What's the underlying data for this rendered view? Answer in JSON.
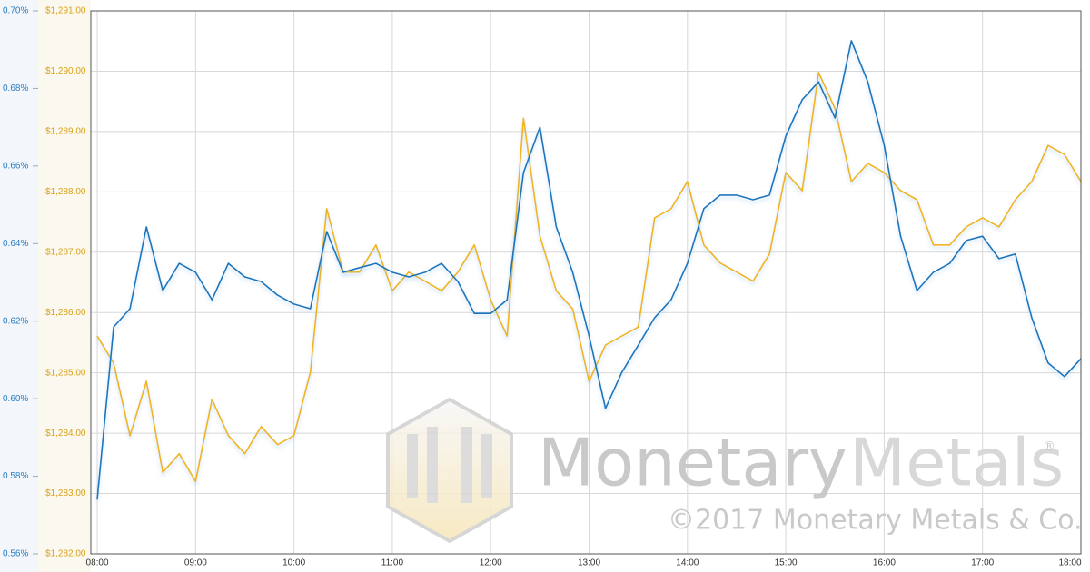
{
  "chart_data": {
    "type": "line",
    "x": [
      8,
      8.1667,
      8.3333,
      8.5,
      8.6667,
      8.8333,
      9,
      9.1667,
      9.3333,
      9.5,
      9.6667,
      9.8333,
      10,
      10.1667,
      10.3333,
      10.5,
      10.6667,
      10.8333,
      11,
      11.1667,
      11.3333,
      11.5,
      11.6667,
      11.8333,
      12,
      12.1667,
      12.3333,
      12.5,
      12.6667,
      12.8333,
      13,
      13.1667,
      13.3333,
      13.5,
      13.6667,
      13.8333,
      14,
      14.1667,
      14.3333,
      14.5,
      14.6667,
      14.8333,
      15,
      15.1667,
      15.3333,
      15.5,
      15.6667,
      15.8333,
      16,
      16.1667,
      16.3333,
      16.5,
      16.6667,
      16.8333,
      17,
      17.1667,
      17.3333,
      17.5,
      17.6667,
      17.8333,
      18
    ],
    "series": [
      {
        "color": "#f0b41c",
        "values": [
          1285.61,
          1285.16,
          1283.96,
          1284.86,
          1283.35,
          1283.66,
          1283.2,
          1284.56,
          1283.96,
          1283.66,
          1284.11,
          1283.81,
          1283.96,
          1285.01,
          1287.72,
          1286.67,
          1286.67,
          1287.12,
          1286.36,
          1286.67,
          1286.52,
          1286.36,
          1286.67,
          1287.12,
          1286.21,
          1285.61,
          1289.22,
          1287.27,
          1286.36,
          1286.06,
          1284.86,
          1285.46,
          1285.61,
          1285.76,
          1287.57,
          1287.72,
          1288.17,
          1287.12,
          1286.82,
          1286.67,
          1286.52,
          1286.97,
          1288.32,
          1288.02,
          1289.98,
          1289.38,
          1288.17,
          1288.47,
          1288.32,
          1288.02,
          1287.87,
          1287.12,
          1287.12,
          1287.42,
          1287.57,
          1287.42,
          1287.87,
          1288.17,
          1288.77,
          1288.62,
          1288.17
        ]
      },
      {
        "color": "#1a75bb",
        "axis": "y2",
        "values": [
          0.574,
          0.6185,
          0.6232,
          0.6443,
          0.6279,
          0.6349,
          0.6326,
          0.6255,
          0.6349,
          0.6314,
          0.6302,
          0.6267,
          0.6244,
          0.6232,
          0.6431,
          0.6326,
          0.6338,
          0.6349,
          0.6326,
          0.6314,
          0.6326,
          0.6349,
          0.6302,
          0.622,
          0.622,
          0.6255,
          0.6583,
          0.67,
          0.6443,
          0.6326,
          0.6162,
          0.5975,
          0.6068,
          0.6138,
          0.6209,
          0.6255,
          0.6349,
          0.649,
          0.6525,
          0.6525,
          0.6513,
          0.6525,
          0.6677,
          0.6771,
          0.6817,
          0.6724,
          0.6923,
          0.6817,
          0.6654,
          0.6419,
          0.6279,
          0.6326,
          0.6349,
          0.6408,
          0.6419,
          0.6361,
          0.6373,
          0.6209,
          0.6092,
          0.6057,
          0.6103
        ]
      }
    ],
    "xlim": [
      7.935,
      18
    ],
    "xticks": [
      {
        "value": 8,
        "label": "08:00"
      },
      {
        "value": 9,
        "label": "09:00"
      },
      {
        "value": 10,
        "label": "10:00"
      },
      {
        "value": 11,
        "label": "11:00"
      },
      {
        "value": 12,
        "label": "12:00"
      },
      {
        "value": 13,
        "label": "13:00"
      },
      {
        "value": 14,
        "label": "14:00"
      },
      {
        "value": 15,
        "label": "15:00"
      },
      {
        "value": 16,
        "label": "16:00"
      },
      {
        "value": 17,
        "label": "17:00"
      },
      {
        "value": 18,
        "label": "18:00"
      }
    ],
    "ylim": [
      1282,
      1291
    ],
    "yticks": [
      {
        "value": 1282,
        "label": "$1,282.00"
      },
      {
        "value": 1283,
        "label": "$1,283.00"
      },
      {
        "value": 1284,
        "label": "$1,284.00"
      },
      {
        "value": 1285,
        "label": "$1,285.00"
      },
      {
        "value": 1286,
        "label": "$1,286.00"
      },
      {
        "value": 1287,
        "label": "$1,287.00"
      },
      {
        "value": 1288,
        "label": "$1,288.00"
      },
      {
        "value": 1289,
        "label": "$1,289.00"
      },
      {
        "value": 1290,
        "label": "$1,290.00"
      },
      {
        "value": 1291,
        "label": "$1,291.00"
      }
    ],
    "y2lim": [
      0.56,
      0.7
    ],
    "y2ticks": [
      {
        "value": 0.56,
        "label": "0.56%"
      },
      {
        "value": 0.58,
        "label": "0.58%"
      },
      {
        "value": 0.6,
        "label": "0.60%"
      },
      {
        "value": 0.62,
        "label": "0.62%"
      },
      {
        "value": 0.64,
        "label": "0.64%"
      },
      {
        "value": 0.66,
        "label": "0.66%"
      },
      {
        "value": 0.68,
        "label": "0.68%"
      },
      {
        "value": 0.7,
        "label": "0.70%"
      }
    ],
    "grid": true,
    "watermark": {
      "brand_1": "Monetary",
      "brand_2": "Metals",
      "registered": "®",
      "copyright": "©2017 Monetary Metals & Co."
    }
  }
}
